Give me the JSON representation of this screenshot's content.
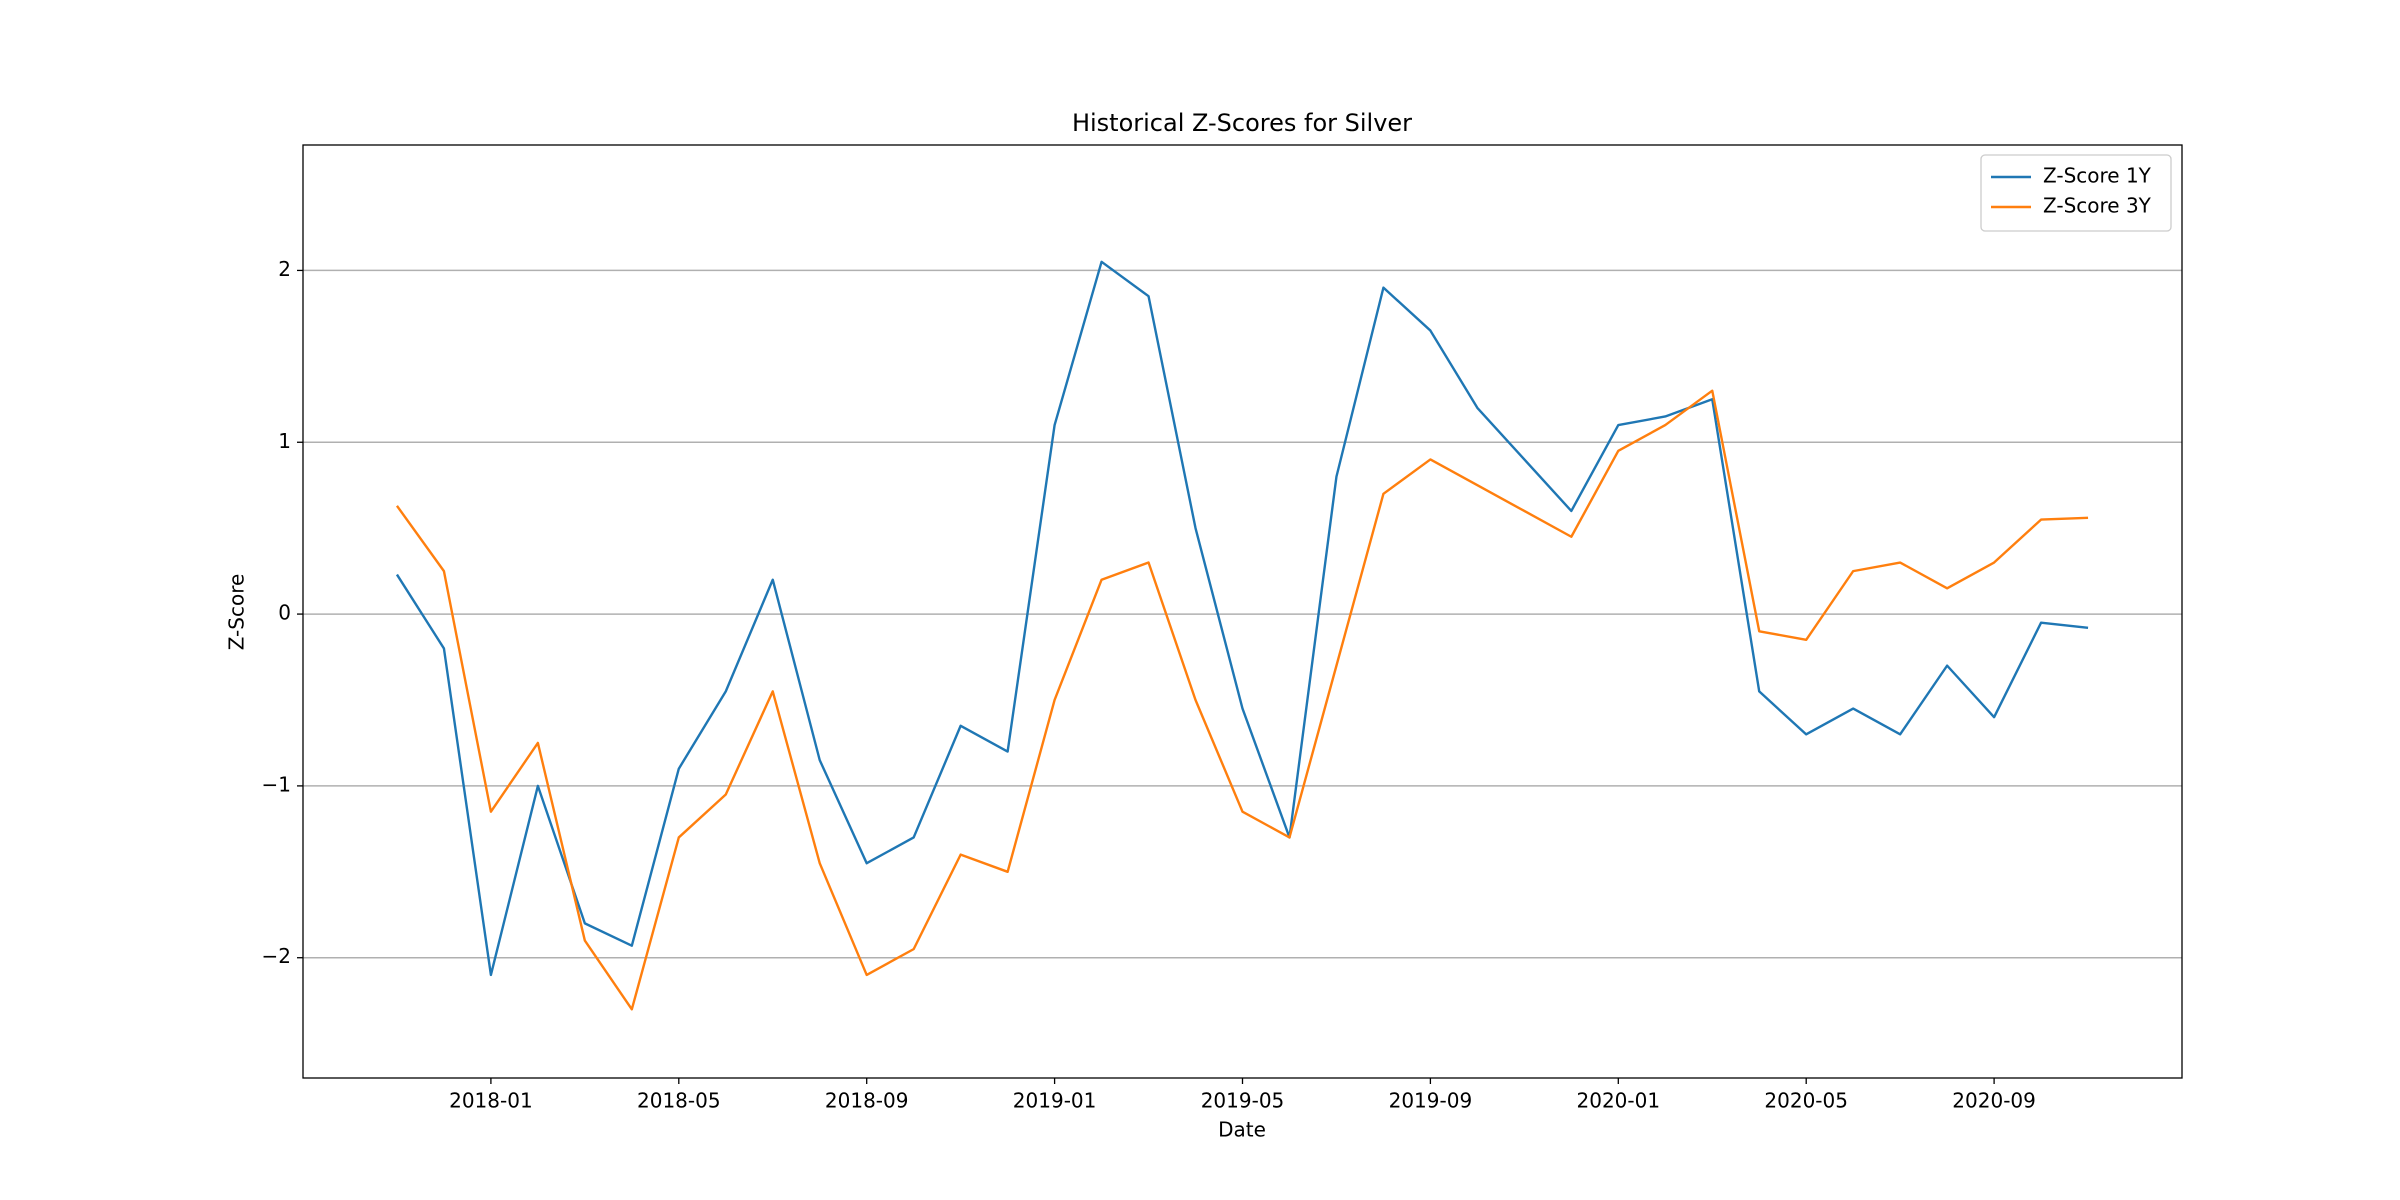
{
  "chart_data": {
    "type": "line",
    "title": "Historical Z-Scores for Silver",
    "x_label": "Date",
    "y_label": "Z-Score",
    "x": [
      "2017-11",
      "2017-12",
      "2018-01",
      "2018-02",
      "2018-03",
      "2018-04",
      "2018-05",
      "2018-06",
      "2018-07",
      "2018-08",
      "2018-09",
      "2018-10",
      "2018-11",
      "2018-12",
      "2019-01",
      "2019-02",
      "2019-03",
      "2019-04",
      "2019-05",
      "2019-06",
      "2019-07",
      "2019-08",
      "2019-09",
      "2019-10",
      "2019-11",
      "2019-12",
      "2020-01",
      "2020-02",
      "2020-03",
      "2020-04",
      "2020-05",
      "2020-06",
      "2020-07",
      "2020-08",
      "2020-09",
      "2020-10",
      "2020-11"
    ],
    "series": [
      {
        "name": "Z-Score 1Y",
        "color": "#1f77b4",
        "values": [
          0.23,
          -0.2,
          -2.1,
          -1.0,
          -1.8,
          -1.93,
          -0.9,
          -0.45,
          0.2,
          -0.85,
          -1.45,
          -1.3,
          -0.65,
          -0.8,
          1.1,
          2.05,
          1.85,
          0.5,
          -0.55,
          -1.3,
          0.8,
          1.9,
          1.65,
          1.2,
          0.9,
          0.6,
          1.1,
          1.15,
          1.25,
          -0.45,
          -0.7,
          -0.55,
          -0.7,
          -0.3,
          -0.6,
          -0.05,
          -0.08
        ]
      },
      {
        "name": "Z-Score 3Y",
        "color": "#ff7f0e",
        "values": [
          0.63,
          0.25,
          -1.15,
          -0.75,
          -1.9,
          -2.3,
          -1.3,
          -1.05,
          -0.45,
          -1.45,
          -2.1,
          -1.95,
          -1.4,
          -1.5,
          -0.5,
          0.2,
          0.3,
          -0.5,
          -1.15,
          -1.3,
          -0.3,
          0.7,
          0.9,
          0.75,
          0.6,
          0.45,
          0.95,
          1.1,
          1.3,
          -0.1,
          -0.15,
          0.25,
          0.3,
          0.15,
          0.3,
          0.55,
          0.56
        ]
      }
    ],
    "xlim": [
      "2017-09",
      "2021-01"
    ],
    "xticks": [
      "2018-01",
      "2018-05",
      "2018-09",
      "2019-01",
      "2019-05",
      "2019-09",
      "2020-01",
      "2020-05",
      "2020-09"
    ],
    "ylim": [
      -2.7,
      2.73
    ],
    "yticks": [
      {
        "value": -2,
        "label": "−2"
      },
      {
        "value": -1,
        "label": "−1"
      },
      0,
      1,
      2
    ],
    "grid": "y",
    "legend": "upper right"
  }
}
